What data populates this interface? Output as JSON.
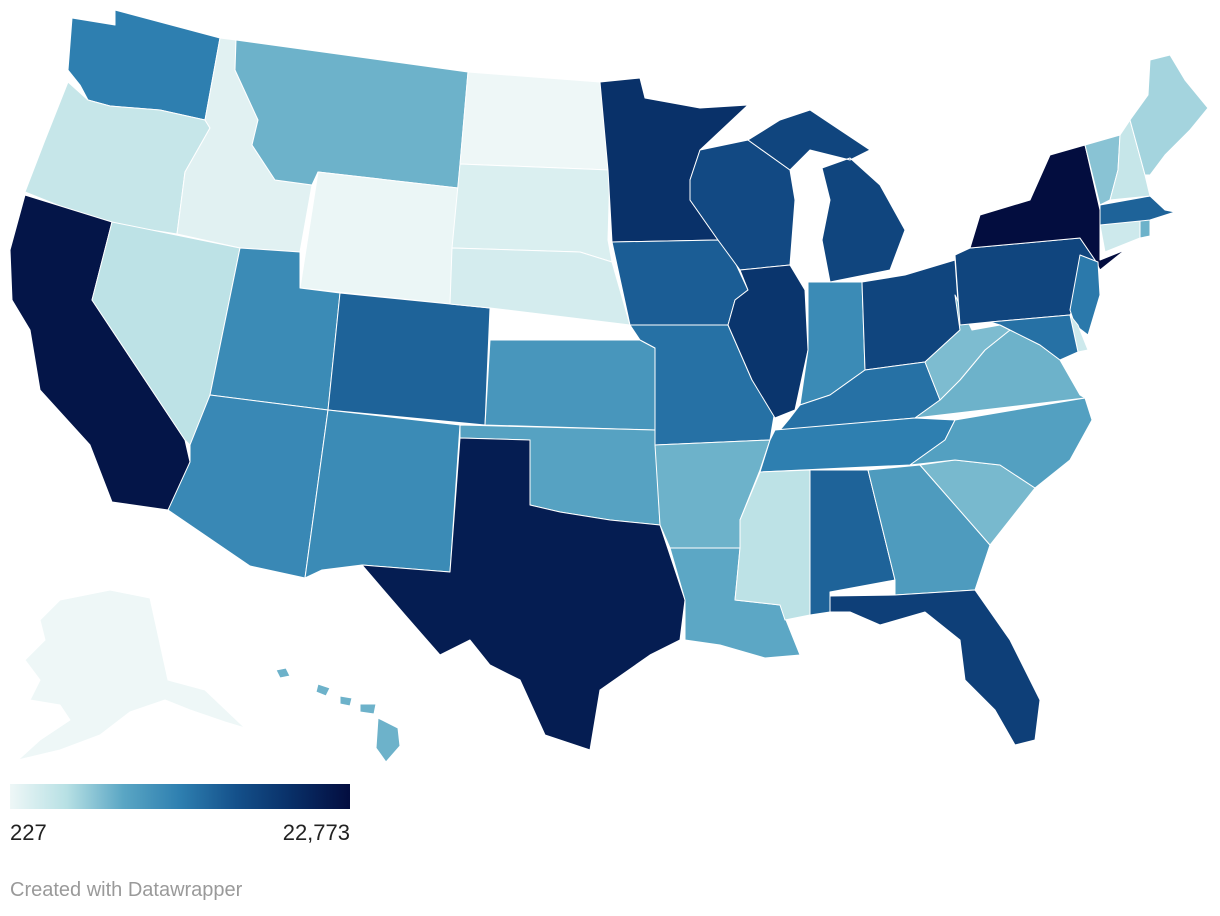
{
  "legend": {
    "min_label": "227",
    "max_label": "22,773",
    "min_value": 227,
    "max_value": 22773,
    "gradient": [
      "#eef7f7",
      "#b7e0e4",
      "#5aa6c4",
      "#2e7fb0",
      "#14508a",
      "#082e66",
      "#030d3f"
    ]
  },
  "credit": "Created with Datawrapper",
  "states": [
    {
      "id": "AK",
      "name": "Alaska",
      "level": 0.0
    },
    {
      "id": "HI",
      "name": "Hawaii",
      "level": 0.3
    },
    {
      "id": "WA",
      "name": "Washington",
      "level": 0.5
    },
    {
      "id": "OR",
      "name": "Oregon",
      "level": 0.12
    },
    {
      "id": "CA",
      "name": "California",
      "level": 0.96
    },
    {
      "id": "ID",
      "name": "Idaho",
      "level": 0.04
    },
    {
      "id": "NV",
      "name": "Nevada",
      "level": 0.15
    },
    {
      "id": "MT",
      "name": "Montana",
      "level": 0.3
    },
    {
      "id": "WY",
      "name": "Wyoming",
      "level": 0.01
    },
    {
      "id": "UT",
      "name": "Utah",
      "level": 0.45
    },
    {
      "id": "AZ",
      "name": "Arizona",
      "level": 0.46
    },
    {
      "id": "CO",
      "name": "Colorado",
      "level": 0.6
    },
    {
      "id": "NM",
      "name": "New Mexico",
      "level": 0.45
    },
    {
      "id": "ND",
      "name": "North Dakota",
      "level": 0.0
    },
    {
      "id": "SD",
      "name": "South Dakota",
      "level": 0.06
    },
    {
      "id": "NE",
      "name": "Nebraska",
      "level": 0.08
    },
    {
      "id": "KS",
      "name": "Kansas",
      "level": 0.4
    },
    {
      "id": "OK",
      "name": "Oklahoma",
      "level": 0.35
    },
    {
      "id": "TX",
      "name": "Texas",
      "level": 0.92
    },
    {
      "id": "MN",
      "name": "Minnesota",
      "level": 0.82
    },
    {
      "id": "IA",
      "name": "Iowa",
      "level": 0.62
    },
    {
      "id": "MO",
      "name": "Missouri",
      "level": 0.55
    },
    {
      "id": "AR",
      "name": "Arkansas",
      "level": 0.3
    },
    {
      "id": "LA",
      "name": "Louisiana",
      "level": 0.33
    },
    {
      "id": "WI",
      "name": "Wisconsin",
      "level": 0.7
    },
    {
      "id": "IL",
      "name": "Illinois",
      "level": 0.8
    },
    {
      "id": "MI",
      "name": "Michigan",
      "level": 0.72
    },
    {
      "id": "IN",
      "name": "Indiana",
      "level": 0.45
    },
    {
      "id": "OH",
      "name": "Ohio",
      "level": 0.72
    },
    {
      "id": "KY",
      "name": "Kentucky",
      "level": 0.55
    },
    {
      "id": "TN",
      "name": "Tennessee",
      "level": 0.5
    },
    {
      "id": "MS",
      "name": "Mississippi",
      "level": 0.15
    },
    {
      "id": "AL",
      "name": "Alabama",
      "level": 0.6
    },
    {
      "id": "GA",
      "name": "Georgia",
      "level": 0.38
    },
    {
      "id": "FL",
      "name": "Florida",
      "level": 0.75
    },
    {
      "id": "SC",
      "name": "South Carolina",
      "level": 0.28
    },
    {
      "id": "NC",
      "name": "North Carolina",
      "level": 0.36
    },
    {
      "id": "VA",
      "name": "Virginia",
      "level": 0.3
    },
    {
      "id": "WV",
      "name": "West Virginia",
      "level": 0.27
    },
    {
      "id": "PA",
      "name": "Pennsylvania",
      "level": 0.72
    },
    {
      "id": "NY",
      "name": "New York",
      "level": 1.0
    },
    {
      "id": "NJ",
      "name": "New Jersey",
      "level": 0.52
    },
    {
      "id": "DE",
      "name": "Delaware",
      "level": 0.1
    },
    {
      "id": "MD",
      "name": "Maryland",
      "level": 0.55
    },
    {
      "id": "CT",
      "name": "Connecticut",
      "level": 0.1
    },
    {
      "id": "RI",
      "name": "Rhode Island",
      "level": 0.3
    },
    {
      "id": "MA",
      "name": "Massachusetts",
      "level": 0.6
    },
    {
      "id": "VT",
      "name": "Vermont",
      "level": 0.25
    },
    {
      "id": "NH",
      "name": "New Hampshire",
      "level": 0.12
    },
    {
      "id": "ME",
      "name": "Maine",
      "level": 0.2
    }
  ]
}
